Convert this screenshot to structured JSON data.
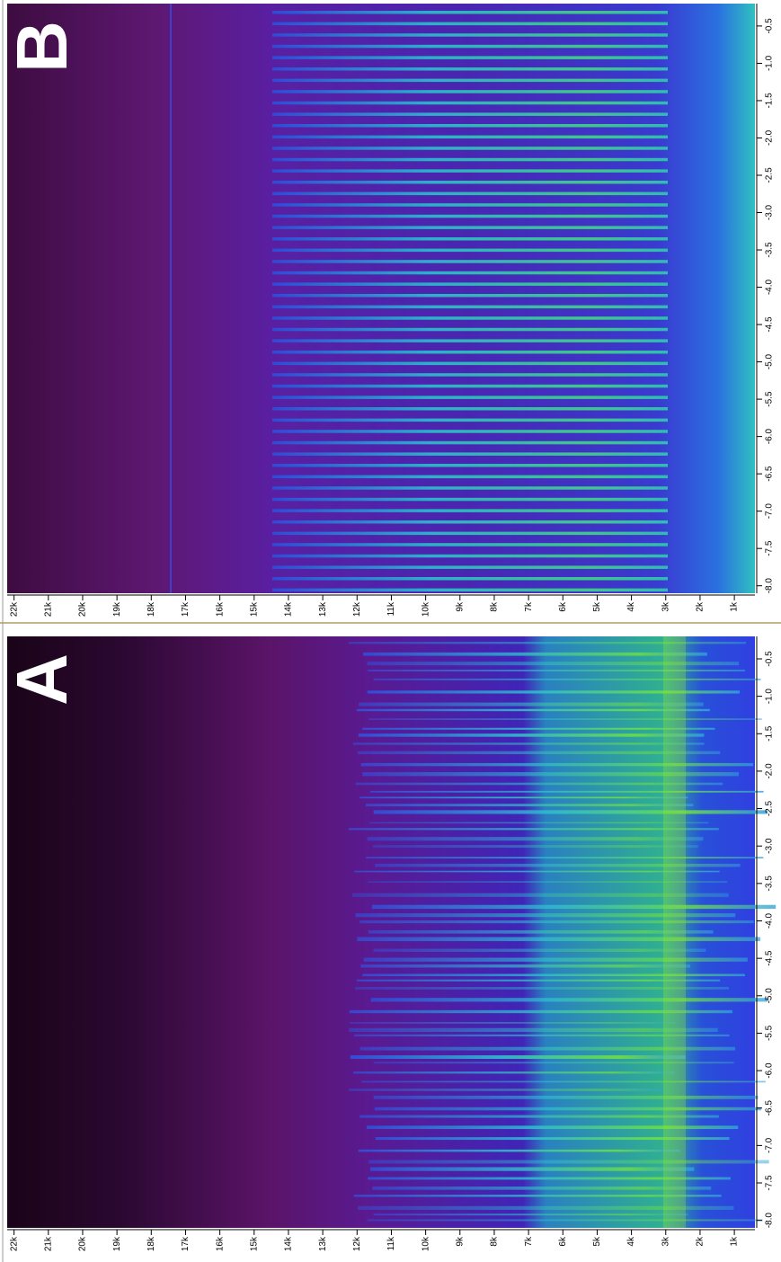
{
  "chart_data": [
    {
      "type": "spectrogram",
      "label": "B",
      "xlim": [
        22200,
        400
      ],
      "xticks": [
        {
          "value": 22000,
          "label": "22k"
        },
        {
          "value": 21000,
          "label": "21k"
        },
        {
          "value": 20000,
          "label": "20k"
        },
        {
          "value": 19000,
          "label": "19k"
        },
        {
          "value": 18000,
          "label": "18k"
        },
        {
          "value": 17000,
          "label": "17k"
        },
        {
          "value": 16000,
          "label": "16k"
        },
        {
          "value": 15000,
          "label": "15k"
        },
        {
          "value": 14000,
          "label": "14k"
        },
        {
          "value": 13000,
          "label": "13k"
        },
        {
          "value": 12000,
          "label": "12k"
        },
        {
          "value": 11000,
          "label": "11k"
        },
        {
          "value": 10000,
          "label": "10k"
        },
        {
          "value": 9000,
          "label": "9k"
        },
        {
          "value": 8000,
          "label": "8k"
        },
        {
          "value": 7000,
          "label": "7k"
        },
        {
          "value": 6000,
          "label": "6k"
        },
        {
          "value": 5000,
          "label": "5k"
        },
        {
          "value": 4000,
          "label": "4k"
        },
        {
          "value": 3000,
          "label": "3k"
        },
        {
          "value": 2000,
          "label": "2k"
        },
        {
          "value": 1000,
          "label": "1k"
        }
      ],
      "ylim": [
        -0.2,
        -8.1
      ],
      "yticks": [
        -0.5,
        {
          "value": -1,
          "label": "-1.0"
        },
        -1.5,
        {
          "value": -2,
          "label": "-2.0"
        },
        -2.5,
        {
          "value": -3,
          "label": "-3.0"
        },
        -3.5,
        {
          "value": -4,
          "label": "-4.0"
        },
        -4.5,
        {
          "value": -5,
          "label": "-5.0"
        },
        -5.5,
        {
          "value": -6,
          "label": "-6.0"
        },
        -6.5,
        {
          "value": -7,
          "label": "-7.0"
        },
        -7.5,
        {
          "value": -8,
          "label": "-8.0"
        }
      ]
    },
    {
      "type": "spectrogram",
      "label": "A",
      "xlim": [
        22200,
        400
      ],
      "xticks": [
        {
          "value": 22000,
          "label": "22k"
        },
        {
          "value": 21000,
          "label": "21k"
        },
        {
          "value": 20000,
          "label": "20k"
        },
        {
          "value": 19000,
          "label": "19k"
        },
        {
          "value": 18000,
          "label": "18k"
        },
        {
          "value": 17000,
          "label": "17k"
        },
        {
          "value": 16000,
          "label": "16k"
        },
        {
          "value": 15000,
          "label": "15k"
        },
        {
          "value": 14000,
          "label": "14k"
        },
        {
          "value": 13000,
          "label": "13k"
        },
        {
          "value": 12000,
          "label": "12k"
        },
        {
          "value": 11000,
          "label": "11k"
        },
        {
          "value": 10000,
          "label": "10k"
        },
        {
          "value": 9000,
          "label": "9k"
        },
        {
          "value": 8000,
          "label": "8k"
        },
        {
          "value": 7000,
          "label": "7k"
        },
        {
          "value": 6000,
          "label": "6k"
        },
        {
          "value": 5000,
          "label": "5k"
        },
        {
          "value": 4000,
          "label": "4k"
        },
        {
          "value": 3000,
          "label": "3k"
        },
        {
          "value": 2000,
          "label": "2k"
        },
        {
          "value": 1000,
          "label": "1k"
        }
      ],
      "ylim": [
        -0.2,
        -8.1
      ],
      "yticks": [
        -0.5,
        {
          "value": -1,
          "label": "-1.0"
        },
        -1.5,
        {
          "value": -2,
          "label": "-2.0"
        },
        -2.5,
        {
          "value": -3,
          "label": "-3.0"
        },
        -3.5,
        {
          "value": -4,
          "label": "-4.0"
        },
        -4.5,
        {
          "value": -5,
          "label": "-5.0"
        },
        -5.5,
        {
          "value": -6,
          "label": "-6.0"
        },
        -6.5,
        {
          "value": -7,
          "label": "-7.0"
        },
        -7.5,
        {
          "value": -8,
          "label": "-8.0"
        }
      ]
    }
  ]
}
